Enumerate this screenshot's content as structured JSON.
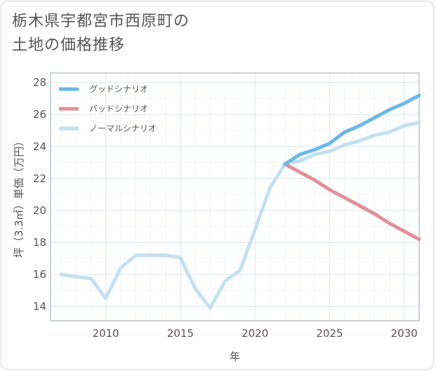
{
  "title_lines": [
    "栃木県宇都宮市西原町の",
    "土地の価格推移"
  ],
  "chart_data": {
    "type": "line",
    "xlabel": "年",
    "ylabel": "坪（3.3㎡）単価（万円）",
    "xlim": [
      2006.3,
      2031
    ],
    "ylim": [
      13.1,
      28.6
    ],
    "x_ticks": [
      2010,
      2015,
      2020,
      2025,
      2030
    ],
    "y_ticks": [
      14,
      16,
      18,
      20,
      22,
      24,
      26,
      28
    ],
    "legend_position": "top-left",
    "series": [
      {
        "name": "グッドシナリオ",
        "color": "#6cb7ea",
        "x": [
          2022,
          2023,
          2024,
          2025,
          2026,
          2027,
          2028,
          2029,
          2030,
          2031
        ],
        "y": [
          22.9,
          23.5,
          23.8,
          24.2,
          24.9,
          25.3,
          25.8,
          26.3,
          26.7,
          27.2
        ]
      },
      {
        "name": "バッドシナリオ",
        "color": "#e0909a",
        "x": [
          2022,
          2023,
          2024,
          2025,
          2026,
          2027,
          2028,
          2029,
          2030,
          2031
        ],
        "y": [
          22.9,
          22.4,
          21.9,
          21.3,
          20.8,
          20.3,
          19.8,
          19.2,
          18.7,
          18.2
        ]
      },
      {
        "name": "ノーマルシナリオ",
        "color": "#c2e0ee",
        "x": [
          2007,
          2008,
          2009,
          2010,
          2011,
          2012,
          2013,
          2014,
          2015,
          2016,
          2017,
          2018,
          2019,
          2020,
          2021,
          2022,
          2023,
          2024,
          2025,
          2026,
          2027,
          2028,
          2029,
          2030,
          2031
        ],
        "y": [
          16.0,
          15.85,
          15.75,
          14.5,
          16.4,
          17.2,
          17.2,
          17.2,
          17.05,
          15.1,
          13.9,
          15.6,
          16.25,
          18.8,
          21.4,
          22.9,
          23.1,
          23.5,
          23.7,
          24.1,
          24.35,
          24.7,
          24.9,
          25.3,
          25.5
        ]
      }
    ]
  }
}
